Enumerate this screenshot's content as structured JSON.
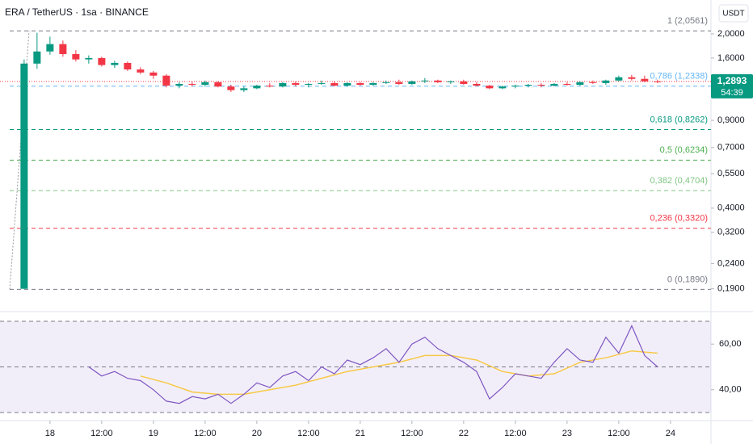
{
  "chart_data": {
    "type": "candlestick",
    "title": "ERA / TetherUS · 1sa · BINANCE",
    "currency": "USDT",
    "log_scale": true,
    "up_color": "#089981",
    "down_color": "#f23645",
    "xlim": [
      -11.6,
      153.4
    ],
    "xticks": [
      {
        "value": 0,
        "label": "18"
      },
      {
        "value": 12,
        "label": "12:00"
      },
      {
        "value": 24,
        "label": "19"
      },
      {
        "value": 36,
        "label": "12:00"
      },
      {
        "value": 48,
        "label": "20"
      },
      {
        "value": 60,
        "label": "12:00"
      },
      {
        "value": 72,
        "label": "21"
      },
      {
        "value": 84,
        "label": "12:00"
      },
      {
        "value": 96,
        "label": "22"
      },
      {
        "value": 108,
        "label": "12:00"
      },
      {
        "value": 120,
        "label": "23"
      },
      {
        "value": 132,
        "label": "12:00"
      },
      {
        "value": 144,
        "label": "24"
      }
    ],
    "ylim": [
      0.155,
      2.356
    ],
    "yticks": [
      {
        "value": 2,
        "label": "2,0000"
      },
      {
        "value": 1.6,
        "label": "1,6000"
      },
      {
        "value": 0.9,
        "label": "0,9000"
      },
      {
        "value": 0.7,
        "label": "0,7000"
      },
      {
        "value": 0.55,
        "label": "0,5500"
      },
      {
        "value": 0.4,
        "label": "0,4000"
      },
      {
        "value": 0.32,
        "label": "0,3200"
      },
      {
        "value": 0.24,
        "label": "0,2400"
      },
      {
        "value": 0.19,
        "label": "0,1900"
      }
    ],
    "candles": {
      "x": [
        -6,
        -3,
        0,
        3,
        6,
        9,
        12,
        15,
        18,
        21,
        24,
        27,
        30,
        33,
        36,
        39,
        42,
        45,
        48,
        51,
        54,
        57,
        60,
        63,
        66,
        69,
        72,
        75,
        78,
        81,
        84,
        87,
        90,
        93,
        96,
        99,
        102,
        105,
        108,
        111,
        114,
        117,
        120,
        123,
        126,
        129,
        132,
        135,
        138,
        141
      ],
      "open": [
        0.19,
        1.52,
        1.7,
        1.82,
        1.66,
        1.58,
        1.6,
        1.5,
        1.53,
        1.44,
        1.4,
        1.36,
        1.24,
        1.26,
        1.25,
        1.28,
        1.23,
        1.19,
        1.21,
        1.24,
        1.23,
        1.27,
        1.25,
        1.26,
        1.27,
        1.24,
        1.27,
        1.25,
        1.27,
        1.28,
        1.26,
        1.29,
        1.3,
        1.28,
        1.29,
        1.26,
        1.24,
        1.21,
        1.23,
        1.24,
        1.25,
        1.24,
        1.26,
        1.25,
        1.28,
        1.27,
        1.3,
        1.34,
        1.32,
        1.29
      ],
      "high": [
        1.58,
        2.02,
        1.95,
        1.88,
        1.72,
        1.64,
        1.62,
        1.56,
        1.55,
        1.47,
        1.42,
        1.38,
        1.28,
        1.29,
        1.3,
        1.29,
        1.25,
        1.23,
        1.25,
        1.27,
        1.28,
        1.29,
        1.27,
        1.3,
        1.29,
        1.28,
        1.28,
        1.28,
        1.3,
        1.31,
        1.3,
        1.33,
        1.31,
        1.3,
        1.31,
        1.28,
        1.25,
        1.24,
        1.25,
        1.26,
        1.27,
        1.27,
        1.28,
        1.29,
        1.3,
        1.31,
        1.36,
        1.37,
        1.36,
        1.31
      ],
      "low": [
        0.19,
        1.45,
        1.65,
        1.62,
        1.55,
        1.52,
        1.48,
        1.46,
        1.42,
        1.38,
        1.32,
        1.22,
        1.21,
        1.23,
        1.23,
        1.22,
        1.17,
        1.17,
        1.2,
        1.22,
        1.22,
        1.23,
        1.22,
        1.25,
        1.23,
        1.23,
        1.24,
        1.24,
        1.26,
        1.25,
        1.25,
        1.27,
        1.27,
        1.26,
        1.25,
        1.23,
        1.2,
        1.2,
        1.21,
        1.22,
        1.22,
        1.23,
        1.24,
        1.24,
        1.26,
        1.25,
        1.29,
        1.3,
        1.28,
        1.27
      ],
      "close": [
        1.52,
        1.7,
        1.82,
        1.66,
        1.58,
        1.6,
        1.5,
        1.53,
        1.44,
        1.4,
        1.36,
        1.24,
        1.26,
        1.25,
        1.28,
        1.23,
        1.19,
        1.21,
        1.24,
        1.23,
        1.27,
        1.25,
        1.26,
        1.27,
        1.24,
        1.27,
        1.25,
        1.27,
        1.28,
        1.26,
        1.29,
        1.3,
        1.28,
        1.29,
        1.26,
        1.24,
        1.21,
        1.23,
        1.24,
        1.25,
        1.24,
        1.26,
        1.25,
        1.28,
        1.27,
        1.3,
        1.34,
        1.32,
        1.29,
        1.2893
      ]
    },
    "fib_levels": [
      {
        "label": "1 (2,0561)",
        "price": 2.0561,
        "color": "#787b86"
      },
      {
        "label": "0,786 (1,2338)",
        "price": 1.2338,
        "color": "#64b5f6"
      },
      {
        "label": "0,618 (0,8262)",
        "price": 0.8262,
        "color": "#089981"
      },
      {
        "label": "0,5 (0,6234)",
        "price": 0.6234,
        "color": "#4caf50"
      },
      {
        "label": "0,382 (0,4704)",
        "price": 0.4704,
        "color": "#81c784"
      },
      {
        "label": "0,236 (0,3320)",
        "price": 0.332,
        "color": "#f23645"
      },
      {
        "label": "0 (0,1890)",
        "price": 0.189,
        "color": "#787b86"
      }
    ],
    "last_price": {
      "value": 1.2893,
      "label": "1,2893",
      "countdown": "54:39",
      "color": "#089981"
    },
    "rsi": {
      "ylim": [
        27.9,
        72.1
      ],
      "yticks": [
        {
          "value": 60,
          "label": "60,00"
        },
        {
          "value": 40,
          "label": "40,00"
        }
      ],
      "bands": [
        70,
        50,
        30
      ],
      "color": "#7e57c2",
      "x": [
        9,
        12,
        15,
        18,
        21,
        24,
        27,
        30,
        33,
        36,
        39,
        42,
        45,
        48,
        51,
        54,
        57,
        60,
        63,
        66,
        69,
        72,
        75,
        78,
        81,
        84,
        87,
        90,
        93,
        96,
        99,
        102,
        105,
        108,
        111,
        114,
        117,
        120,
        123,
        126,
        129,
        132,
        135,
        138,
        141
      ],
      "values": [
        50,
        46,
        48,
        45,
        44,
        40,
        35,
        34,
        37,
        36,
        38,
        34,
        38,
        43,
        41,
        46,
        48,
        44,
        50,
        47,
        53,
        51,
        54,
        58,
        52,
        60,
        63,
        58,
        55,
        52,
        48,
        36,
        41,
        47,
        46,
        45,
        52,
        58,
        53,
        52,
        63,
        56,
        68,
        55,
        50
      ],
      "ma": {
        "color": "#f7c948",
        "x": [
          21,
          27,
          33,
          39,
          45,
          51,
          57,
          63,
          69,
          75,
          81,
          87,
          93,
          99,
          105,
          111,
          117,
          123,
          129,
          135,
          141
        ],
        "values": [
          46,
          43,
          39,
          38,
          38,
          40,
          42,
          45,
          48,
          50,
          52,
          55,
          55,
          53,
          48,
          46,
          47,
          52,
          54,
          57,
          56
        ]
      }
    }
  }
}
